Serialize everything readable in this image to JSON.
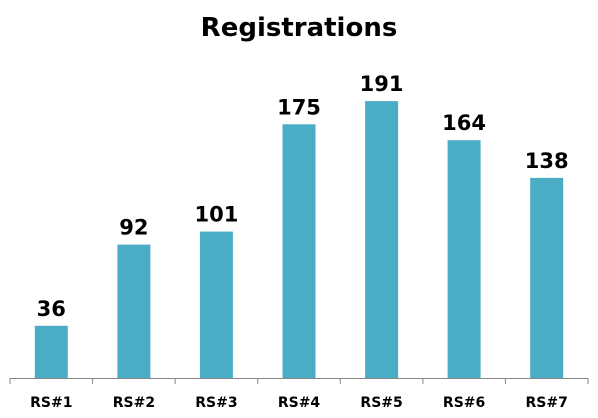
{
  "chart_data": {
    "type": "bar",
    "title": "Registrations",
    "xlabel": "",
    "ylabel": "",
    "categories": [
      "RS#1",
      "RS#2",
      "RS#3",
      "RS#4",
      "RS#5",
      "RS#6",
      "RS#7"
    ],
    "values": [
      36,
      92,
      101,
      175,
      191,
      164,
      138
    ],
    "ylim": [
      0,
      200
    ],
    "grid": false,
    "legend": "none",
    "data_labels": true,
    "colors": {
      "bar": "#4BACC6",
      "axis": "#868686",
      "text": "#000000"
    }
  }
}
